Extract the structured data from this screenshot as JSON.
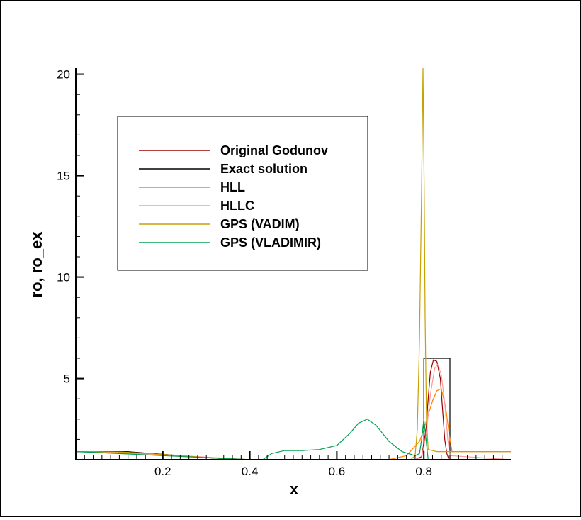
{
  "chart_data": {
    "type": "line",
    "title": "",
    "xlabel": "x",
    "ylabel": "ro, ro_ex",
    "xlim": [
      0.0,
      1.0
    ],
    "ylim": [
      1.0,
      20.3
    ],
    "x_ticks": [
      0.2,
      0.4,
      0.6,
      0.8
    ],
    "x_tick_labels": [
      "0.2",
      "0.4",
      "0.6",
      "0.8"
    ],
    "y_ticks": [
      5,
      10,
      15,
      20
    ],
    "y_tick_labels": [
      "5",
      "10",
      "15",
      "20"
    ],
    "grid": false,
    "legend_position": "upper-left (boxed)",
    "series": [
      {
        "name": "Original Godunov",
        "color": "#990000",
        "x": [
          0.0,
          0.1,
          0.12,
          0.2,
          0.3,
          0.4,
          0.45,
          0.6,
          0.78,
          0.795,
          0.805,
          0.81,
          0.815,
          0.822,
          0.83,
          0.838,
          0.843,
          0.848,
          0.853,
          0.858,
          1.0
        ],
        "y": [
          1.4,
          1.4,
          1.4,
          1.25,
          1.1,
          1.0,
          1.0,
          1.0,
          1.0,
          1.15,
          2.5,
          4.0,
          5.3,
          5.92,
          5.85,
          5.0,
          3.5,
          2.0,
          1.3,
          1.0,
          1.0
        ]
      },
      {
        "name": "Exact solution",
        "color": "#000000",
        "x": [
          0.0,
          0.1,
          0.18,
          0.3,
          0.38,
          0.38,
          0.8,
          0.8,
          0.86,
          0.86,
          1.0
        ],
        "y": [
          1.4,
          1.4,
          1.3,
          1.1,
          1.0,
          1.0,
          1.0,
          6.0,
          6.0,
          1.0,
          1.0
        ]
      },
      {
        "name": "HLL",
        "color": "#ff7f00",
        "x": [
          0.0,
          0.1,
          0.2,
          0.3,
          0.4,
          0.45,
          0.6,
          0.72,
          0.76,
          0.79,
          0.8,
          0.81,
          0.82,
          0.83,
          0.84,
          0.85,
          0.86,
          0.865,
          0.87,
          1.0
        ],
        "y": [
          1.4,
          1.38,
          1.26,
          1.1,
          1.0,
          1.0,
          1.0,
          1.0,
          1.2,
          1.9,
          2.5,
          3.2,
          3.9,
          4.4,
          4.5,
          3.6,
          2.0,
          1.4,
          1.4,
          1.4
        ]
      },
      {
        "name": "HLLC",
        "color": "#ff9999",
        "x": [
          0.0,
          0.2,
          0.4,
          0.6,
          0.78,
          0.795,
          0.805,
          0.815,
          0.825,
          0.832,
          0.84,
          0.848,
          0.855,
          0.86,
          1.0
        ],
        "y": [
          1.4,
          1.25,
          1.0,
          1.0,
          1.0,
          1.1,
          2.2,
          4.2,
          5.5,
          5.7,
          5.2,
          3.8,
          2.0,
          1.2,
          1.0
        ]
      },
      {
        "name": "GPS (VADIM)",
        "color": "#c8a000",
        "x": [
          0.0,
          0.1,
          0.2,
          0.3,
          0.4,
          0.6,
          0.77,
          0.78,
          0.785,
          0.79,
          0.795,
          0.798,
          0.801,
          0.803,
          0.806,
          0.81,
          0.83,
          1.0
        ],
        "y": [
          1.4,
          1.38,
          1.26,
          1.1,
          1.0,
          1.0,
          1.0,
          1.2,
          2.5,
          7.0,
          14.5,
          20.3,
          14.0,
          8.0,
          3.0,
          1.5,
          1.4,
          1.4
        ]
      },
      {
        "name": "GPS (VLADIMIR)",
        "color": "#00a050",
        "x": [
          0.0,
          0.1,
          0.2,
          0.3,
          0.4,
          0.43,
          0.45,
          0.48,
          0.52,
          0.56,
          0.6,
          0.63,
          0.65,
          0.67,
          0.69,
          0.72,
          0.75,
          0.78,
          0.79,
          0.795,
          0.8,
          0.805,
          0.81
        ],
        "y": [
          1.4,
          1.3,
          1.2,
          1.1,
          1.0,
          1.0,
          1.3,
          1.45,
          1.45,
          1.5,
          1.7,
          2.3,
          2.8,
          3.0,
          2.7,
          1.9,
          1.4,
          1.2,
          1.3,
          2.0,
          3.0,
          2.0,
          1.0
        ]
      }
    ]
  }
}
